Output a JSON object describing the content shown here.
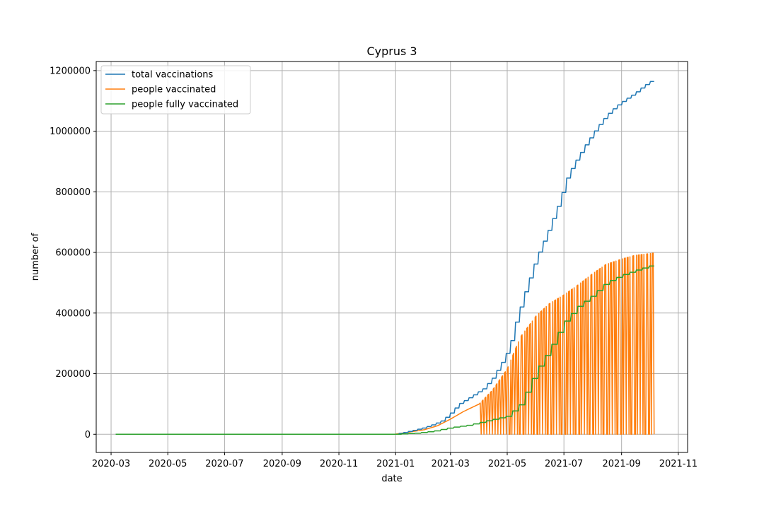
{
  "chart_data": {
    "type": "line",
    "title": "Cyprus 3",
    "xlabel": "date",
    "ylabel": "number of",
    "xlim": [
      "2020-02-14",
      "2021-11-11"
    ],
    "ylim": [
      -60000,
      1230000
    ],
    "grid": true,
    "legend_position": "top-left",
    "x_ticks": [
      "2020-03",
      "2020-05",
      "2020-07",
      "2020-09",
      "2020-11",
      "2021-01",
      "2021-03",
      "2021-05",
      "2021-07",
      "2021-09",
      "2021-11"
    ],
    "y_ticks": [
      0,
      200000,
      400000,
      600000,
      800000,
      1000000,
      1200000
    ],
    "series": [
      {
        "name": "total vaccinations",
        "color": "#1f77b4",
        "points": [
          [
            "2020-03-06",
            0
          ],
          [
            "2020-12-31",
            0
          ],
          [
            "2021-01-10",
            6000
          ],
          [
            "2021-01-20",
            13000
          ],
          [
            "2021-02-01",
            22000
          ],
          [
            "2021-02-10",
            32000
          ],
          [
            "2021-02-20",
            45000
          ],
          [
            "2021-03-01",
            70000
          ],
          [
            "2021-03-10",
            100000
          ],
          [
            "2021-03-25",
            128000
          ],
          [
            "2021-04-05",
            150000
          ],
          [
            "2021-04-15",
            185000
          ],
          [
            "2021-04-25",
            237000
          ],
          [
            "2021-05-03",
            285000
          ],
          [
            "2021-05-10",
            370000
          ],
          [
            "2021-05-20",
            470000
          ],
          [
            "2021-06-01",
            580000
          ],
          [
            "2021-06-15",
            680000
          ],
          [
            "2021-06-25",
            760000
          ],
          [
            "2021-07-05",
            855000
          ],
          [
            "2021-07-15",
            910000
          ],
          [
            "2021-07-25",
            960000
          ],
          [
            "2021-08-05",
            1010000
          ],
          [
            "2021-08-15",
            1050000
          ],
          [
            "2021-08-25",
            1080000
          ],
          [
            "2021-09-05",
            1105000
          ],
          [
            "2021-09-15",
            1125000
          ],
          [
            "2021-09-25",
            1150000
          ],
          [
            "2021-10-06",
            1172000
          ]
        ]
      },
      {
        "name": "people vaccinated",
        "color": "#ff7f0e",
        "points": [
          [
            "2020-03-06",
            0
          ],
          [
            "2020-12-31",
            0
          ],
          [
            "2021-01-15",
            7000
          ],
          [
            "2021-02-01",
            15000
          ],
          [
            "2021-02-15",
            28000
          ],
          [
            "2021-03-01",
            50000
          ],
          [
            "2021-03-15",
            75000
          ],
          [
            "2021-04-01",
            100000
          ],
          [
            "2021-04-15",
            145000
          ],
          [
            "2021-05-01",
            215000
          ],
          [
            "2021-05-15",
            320000
          ],
          [
            "2021-06-01",
            390000
          ],
          [
            "2021-06-15",
            430000
          ],
          [
            "2021-07-01",
            460000
          ],
          [
            "2021-07-15",
            490000
          ],
          [
            "2021-08-01",
            530000
          ],
          [
            "2021-08-15",
            560000
          ],
          [
            "2021-09-01",
            578000
          ],
          [
            "2021-09-15",
            590000
          ],
          [
            "2021-10-06",
            598000
          ]
        ]
      },
      {
        "name": "people fully vaccinated",
        "color": "#2ca02c",
        "points": [
          [
            "2020-03-06",
            0
          ],
          [
            "2020-12-31",
            0
          ],
          [
            "2021-01-20",
            3000
          ],
          [
            "2021-02-10",
            10000
          ],
          [
            "2021-03-01",
            22000
          ],
          [
            "2021-03-20",
            30000
          ],
          [
            "2021-04-10",
            45000
          ],
          [
            "2021-05-01",
            60000
          ],
          [
            "2021-05-15",
            100000
          ],
          [
            "2021-06-01",
            210000
          ],
          [
            "2021-06-15",
            280000
          ],
          [
            "2021-07-01",
            370000
          ],
          [
            "2021-07-15",
            420000
          ],
          [
            "2021-08-01",
            460000
          ],
          [
            "2021-08-15",
            500000
          ],
          [
            "2021-09-01",
            525000
          ],
          [
            "2021-09-15",
            540000
          ],
          [
            "2021-10-06",
            560000
          ]
        ]
      }
    ]
  }
}
